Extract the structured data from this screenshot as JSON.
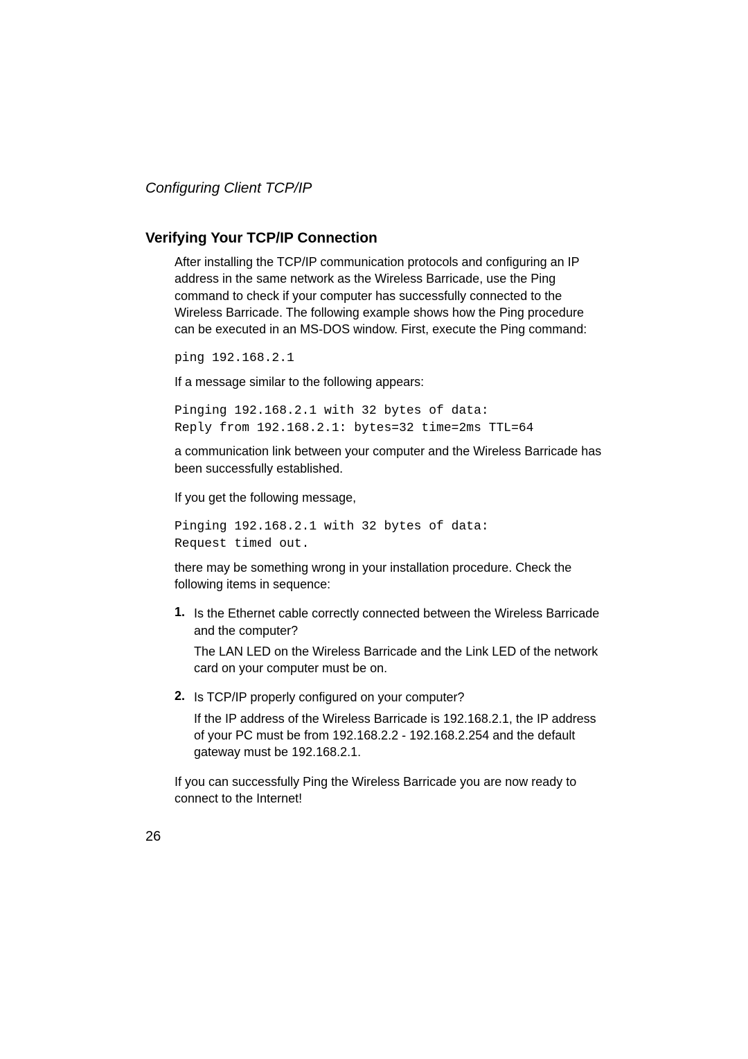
{
  "running_head": "Configuring Client TCP/IP",
  "heading": "Verifying Your TCP/IP Connection",
  "intro": "After installing the TCP/IP communication protocols and configuring an IP address in the same network as the Wireless Barricade, use the Ping command to check if your computer has successfully connected to the Wireless Barricade. The following example shows how the Ping procedure can be executed in an MS-DOS window. First, execute the Ping command:",
  "code1": "ping 192.168.2.1",
  "para2": "If a message similar to the following appears:",
  "code2a": "Pinging 192.168.2.1 with 32 bytes of data:",
  "code2b": "Reply from 192.168.2.1: bytes=32 time=2ms TTL=64",
  "para3": "a communication link between your computer and the Wireless Barricade has been successfully established.",
  "para4": "If you get the following message,",
  "code3a": "Pinging 192.168.2.1 with 32 bytes of data:",
  "code3b": "Request timed out.",
  "para5": "there may be something wrong in your installation procedure. Check the following items in sequence:",
  "list": {
    "item1": {
      "num": "1.",
      "q": "Is the Ethernet cable correctly connected between the Wireless Barricade and the computer?",
      "a": "The LAN LED on the Wireless Barricade and the Link LED of the network card on your computer must be on."
    },
    "item2": {
      "num": "2.",
      "q": "Is TCP/IP properly configured on your computer?",
      "a": "If the IP address of the Wireless Barricade is 192.168.2.1, the IP address of your PC must be from 192.168.2.2 - 192.168.2.254 and the default gateway must be 192.168.2.1."
    }
  },
  "closing": "If you can successfully Ping the Wireless Barricade you are now ready to connect to the Internet!",
  "page_number": "26"
}
